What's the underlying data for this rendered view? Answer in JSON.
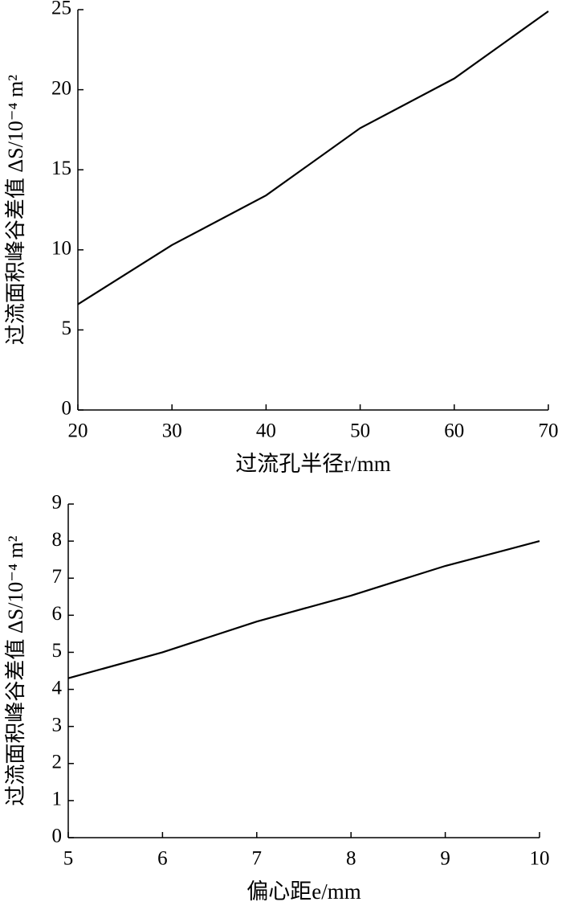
{
  "chart_data": [
    {
      "type": "line",
      "x": [
        20,
        30,
        40,
        50,
        60,
        70
      ],
      "values": [
        6.6,
        10.3,
        13.4,
        17.6,
        20.7,
        24.9
      ],
      "color": "#000000",
      "xlim": [
        20,
        70
      ],
      "xticks": [
        20,
        30,
        40,
        50,
        60,
        70
      ],
      "ylim": [
        0,
        25
      ],
      "yticks": [
        0,
        5,
        10,
        15,
        20,
        25
      ],
      "x_label": "过流孔半径r/mm",
      "y_label": "过流面积峰谷差值 ΔS/10⁻⁴ m²"
    },
    {
      "type": "line",
      "x": [
        5,
        6,
        7,
        8,
        9,
        10
      ],
      "values": [
        4.3,
        5.0,
        5.83,
        6.53,
        7.33,
        8.0
      ],
      "color": "#000000",
      "xlim": [
        5,
        10
      ],
      "xticks": [
        5,
        6,
        7,
        8,
        9,
        10
      ],
      "ylim": [
        0,
        9
      ],
      "yticks": [
        0,
        1,
        2,
        3,
        4,
        5,
        6,
        7,
        8,
        9
      ],
      "x_label": "偏心距e/mm",
      "y_label": "过流面积峰谷差值 ΔS/10⁻⁴ m²"
    }
  ]
}
